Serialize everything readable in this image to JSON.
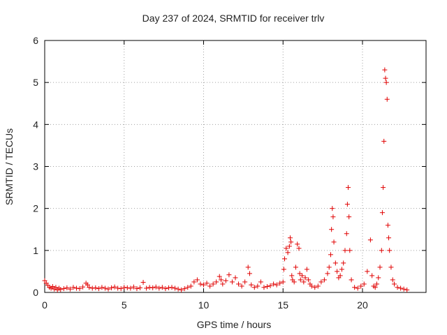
{
  "chart_data": {
    "type": "scatter",
    "title": "Day 237 of 2024, SRMTID for receiver trlv",
    "xlabel": "GPS time / hours",
    "ylabel": "SRMTID / TECUs",
    "xlim": [
      0,
      24
    ],
    "ylim": [
      0,
      6
    ],
    "xticks": [
      0,
      5,
      10,
      15,
      20
    ],
    "yticks": [
      0,
      1,
      2,
      3,
      4,
      5,
      6
    ],
    "grid": true,
    "marker": "plus",
    "color": "#e00000",
    "series": [
      {
        "name": "trlv",
        "x": [
          0.0,
          0.1,
          0.2,
          0.3,
          0.4,
          0.5,
          0.6,
          0.7,
          0.8,
          0.9,
          1.0,
          1.2,
          1.4,
          1.6,
          1.8,
          2.0,
          2.2,
          2.4,
          2.6,
          2.7,
          2.8,
          3.0,
          3.2,
          3.4,
          3.6,
          3.8,
          4.0,
          4.2,
          4.4,
          4.6,
          4.8,
          5.0,
          5.2,
          5.4,
          5.6,
          5.8,
          6.0,
          6.2,
          6.4,
          6.6,
          6.8,
          7.0,
          7.2,
          7.4,
          7.6,
          7.8,
          8.0,
          8.2,
          8.4,
          8.6,
          8.8,
          9.0,
          9.2,
          9.4,
          9.6,
          9.8,
          10.0,
          10.2,
          10.4,
          10.6,
          10.8,
          11.0,
          11.1,
          11.2,
          11.4,
          11.6,
          11.8,
          12.0,
          12.2,
          12.4,
          12.6,
          12.8,
          12.9,
          13.0,
          13.2,
          13.4,
          13.6,
          13.8,
          14.0,
          14.2,
          14.4,
          14.6,
          14.8,
          15.0,
          15.05,
          15.1,
          15.2,
          15.3,
          15.4,
          15.45,
          15.5,
          15.55,
          15.6,
          15.7,
          15.8,
          15.9,
          16.0,
          16.05,
          16.1,
          16.2,
          16.3,
          16.4,
          16.5,
          16.6,
          16.7,
          16.8,
          17.0,
          17.2,
          17.4,
          17.6,
          17.8,
          17.9,
          18.0,
          18.05,
          18.1,
          18.15,
          18.2,
          18.3,
          18.4,
          18.5,
          18.6,
          18.7,
          18.8,
          18.9,
          19.0,
          19.05,
          19.1,
          19.15,
          19.2,
          19.3,
          19.5,
          19.7,
          19.9,
          20.1,
          20.3,
          20.5,
          20.6,
          20.7,
          20.8,
          20.9,
          21.0,
          21.1,
          21.2,
          21.25,
          21.3,
          21.35,
          21.4,
          21.45,
          21.5,
          21.55,
          21.6,
          21.65,
          21.7,
          21.8,
          21.9,
          22.0,
          22.2,
          22.4,
          22.6,
          22.8
        ],
        "y": [
          0.28,
          0.22,
          0.17,
          0.12,
          0.1,
          0.14,
          0.08,
          0.12,
          0.06,
          0.1,
          0.07,
          0.09,
          0.11,
          0.08,
          0.12,
          0.1,
          0.09,
          0.13,
          0.22,
          0.18,
          0.12,
          0.1,
          0.11,
          0.09,
          0.12,
          0.1,
          0.08,
          0.11,
          0.13,
          0.1,
          0.09,
          0.12,
          0.11,
          0.1,
          0.13,
          0.09,
          0.11,
          0.24,
          0.1,
          0.12,
          0.11,
          0.13,
          0.1,
          0.12,
          0.09,
          0.11,
          0.12,
          0.1,
          0.08,
          0.06,
          0.09,
          0.12,
          0.15,
          0.25,
          0.3,
          0.2,
          0.18,
          0.22,
          0.15,
          0.2,
          0.25,
          0.38,
          0.3,
          0.2,
          0.28,
          0.42,
          0.25,
          0.35,
          0.2,
          0.15,
          0.25,
          0.6,
          0.45,
          0.18,
          0.12,
          0.15,
          0.25,
          0.12,
          0.14,
          0.16,
          0.2,
          0.18,
          0.22,
          0.25,
          0.55,
          0.8,
          1.05,
          0.95,
          1.1,
          1.3,
          1.2,
          0.4,
          0.3,
          0.25,
          0.6,
          1.15,
          1.05,
          0.45,
          0.3,
          0.4,
          0.25,
          0.35,
          0.55,
          0.3,
          0.2,
          0.15,
          0.12,
          0.15,
          0.25,
          0.3,
          0.45,
          0.6,
          0.9,
          1.5,
          2.0,
          1.8,
          1.2,
          0.7,
          0.5,
          0.35,
          0.4,
          0.55,
          0.7,
          1.0,
          1.4,
          2.1,
          2.5,
          1.8,
          1.0,
          0.3,
          0.12,
          0.1,
          0.15,
          0.2,
          0.5,
          1.25,
          0.4,
          0.15,
          0.12,
          0.2,
          0.35,
          0.6,
          1.0,
          1.9,
          2.5,
          3.6,
          5.3,
          5.1,
          5.0,
          4.6,
          1.6,
          1.3,
          1.0,
          0.6,
          0.3,
          0.2,
          0.12,
          0.1,
          0.08,
          0.06
        ]
      }
    ]
  }
}
